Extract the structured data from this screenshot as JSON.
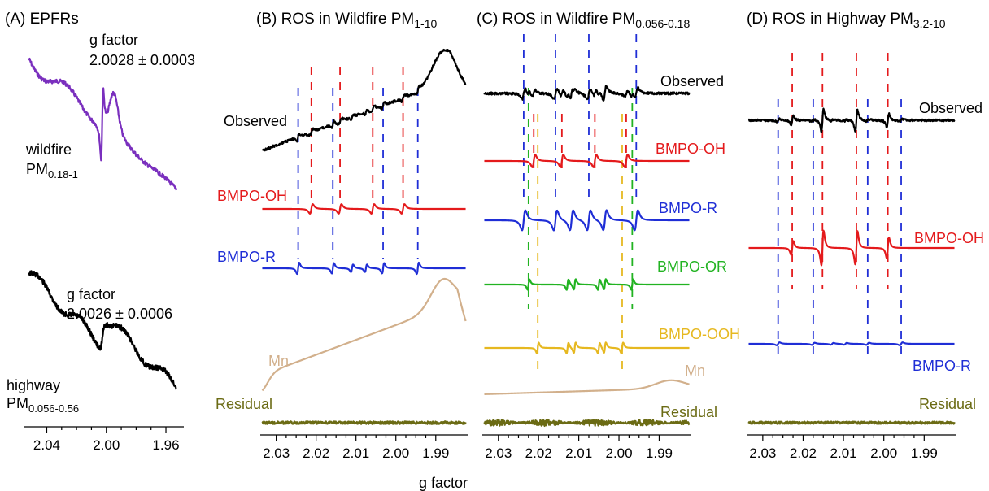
{
  "chart_data": [
    {
      "id": "A",
      "type": "line",
      "title": "(A) EPFRs",
      "xlim": [
        2.055,
        1.948
      ],
      "xticks": [
        "2.04",
        "2.00",
        "1.96"
      ],
      "xtick_values": [
        2.04,
        2.0,
        1.96
      ],
      "series": [
        {
          "label": "wildfire PM0.18-1",
          "label_main": "wildfire",
          "label_sub_base": "PM",
          "label_sub": "0.18-1",
          "annotation": "g factor",
          "annotation_value": "2.0028 ± 0.0003",
          "g_center": 2.0028,
          "color": "#7a2fbe",
          "shape": "epfr-wildfire"
        },
        {
          "label": "highway PM0.056-0.56",
          "label_main": "highway",
          "label_sub_base": "PM",
          "label_sub": "0.056-0.56",
          "annotation": "g factor",
          "annotation_value": "2.0026 ± 0.0006",
          "g_center": 2.0026,
          "color": "#000000",
          "shape": "epfr-highway"
        }
      ]
    },
    {
      "id": "B",
      "type": "line",
      "title": "(B) ROS in Wildfire PM",
      "title_sub": "1-10",
      "xlim": [
        2.034,
        1.982
      ],
      "xticks": [
        "2.03",
        "2.02",
        "2.01",
        "2.00",
        "1.99"
      ],
      "xtick_values": [
        2.03,
        2.02,
        2.01,
        2.0,
        1.99
      ],
      "guides": [
        {
          "color": "#1f2ed6",
          "g": [
            2.0245,
            2.0158,
            2.0032,
            1.9945
          ],
          "from": "Observed",
          "to": "BMPO-R"
        },
        {
          "color": "#e41a1c",
          "g": [
            2.0212,
            2.014,
            2.0058,
            1.9982
          ],
          "from": "Observed",
          "to": "BMPO-OH"
        }
      ],
      "series": [
        {
          "name": "Observed",
          "color": "#000000",
          "shape": "observed-B",
          "peaks": [
            2.0245,
            2.0212,
            2.0158,
            2.014,
            2.0058,
            2.0032,
            1.9982,
            1.9945
          ]
        },
        {
          "name": "BMPO-OH",
          "color": "#e41a1c",
          "shape": "bmpo-oh-B",
          "peaks": [
            2.0212,
            2.014,
            2.0058,
            1.9982
          ]
        },
        {
          "name": "BMPO-R",
          "color": "#1f2ed6",
          "shape": "bmpo-r-B",
          "peaks": [
            2.0245,
            2.0158,
            2.011,
            2.0075,
            2.0032,
            1.9945
          ]
        },
        {
          "name": "Mn",
          "color": "#d2b08c",
          "shape": "mn-B"
        },
        {
          "name": "Residual",
          "color": "#6b6b14",
          "shape": "residual"
        }
      ]
    },
    {
      "id": "C",
      "type": "line",
      "title": "(C) ROS in Wildfire PM",
      "title_sub": "0.056-0.18",
      "xlim": [
        2.034,
        1.982
      ],
      "xticks": [
        "2.03",
        "2.02",
        "2.01",
        "2.00",
        "1.99"
      ],
      "xtick_values": [
        2.03,
        2.02,
        2.01,
        2.0,
        1.99
      ],
      "guides": [
        {
          "color": "#1f2ed6",
          "g": [
            2.0237,
            2.0158,
            2.0075,
            1.9957
          ]
        },
        {
          "color": "#e41a1c",
          "g": [
            2.0212,
            2.0142,
            2.006,
            1.9982
          ]
        },
        {
          "color": "#22b322",
          "g": [
            2.0225,
            1.9967
          ]
        },
        {
          "color": "#e6b820",
          "g": [
            2.0202,
            1.9992
          ]
        }
      ],
      "series": [
        {
          "name": "Observed",
          "color": "#000000",
          "shape": "observed-C"
        },
        {
          "name": "BMPO-OH",
          "color": "#e41a1c",
          "shape": "bmpo-oh-C",
          "peaks": [
            2.0212,
            2.0142,
            2.006,
            1.9982
          ]
        },
        {
          "name": "BMPO-R",
          "color": "#1f2ed6",
          "shape": "bmpo-r-C",
          "peaks": [
            2.0237,
            2.0158,
            2.0118,
            2.0075,
            2.0035,
            1.9957
          ]
        },
        {
          "name": "BMPO-OR",
          "color": "#22b322",
          "shape": "bmpo-or-C",
          "peaks": [
            2.0225,
            2.0128,
            2.011,
            2.005,
            2.0035,
            1.9967
          ]
        },
        {
          "name": "BMPO-OOH",
          "color": "#e6b820",
          "shape": "bmpo-ooh-C",
          "peaks": [
            2.0202,
            2.0128,
            2.011,
            2.005,
            2.0035,
            1.9992
          ]
        },
        {
          "name": "Mn",
          "color": "#d2b08c",
          "shape": "mn-C"
        },
        {
          "name": "Residual",
          "color": "#6b6b14",
          "shape": "residual-C"
        }
      ]
    },
    {
      "id": "D",
      "type": "line",
      "title": "(D) ROS in Highway PM",
      "title_sub": "3.2-10",
      "xlim": [
        2.034,
        1.982
      ],
      "xticks": [
        "2.03",
        "2.02",
        "2.01",
        "2.00",
        "1.99"
      ],
      "xtick_values": [
        2.03,
        2.02,
        2.01,
        2.0,
        1.99
      ],
      "guides": [
        {
          "color": "#1f2ed6",
          "g": [
            2.0262,
            2.0175,
            2.004,
            1.9957
          ]
        },
        {
          "color": "#e41a1c",
          "g": [
            2.0227,
            2.0152,
            2.0068,
            1.999
          ]
        }
      ],
      "series": [
        {
          "name": "Observed",
          "color": "#000000",
          "shape": "observed-D"
        },
        {
          "name": "BMPO-OH",
          "color": "#e41a1c",
          "shape": "bmpo-oh-D",
          "peaks": [
            2.0227,
            2.0152,
            2.0068,
            1.999
          ]
        },
        {
          "name": "BMPO-R",
          "color": "#1f2ed6",
          "shape": "bmpo-r-D",
          "peaks": [
            2.0262,
            2.0175,
            2.0128,
            2.0095,
            2.004,
            1.9957
          ]
        },
        {
          "name": "Residual",
          "color": "#6b6b14",
          "shape": "residual"
        }
      ]
    }
  ],
  "xlabel": "g factor"
}
